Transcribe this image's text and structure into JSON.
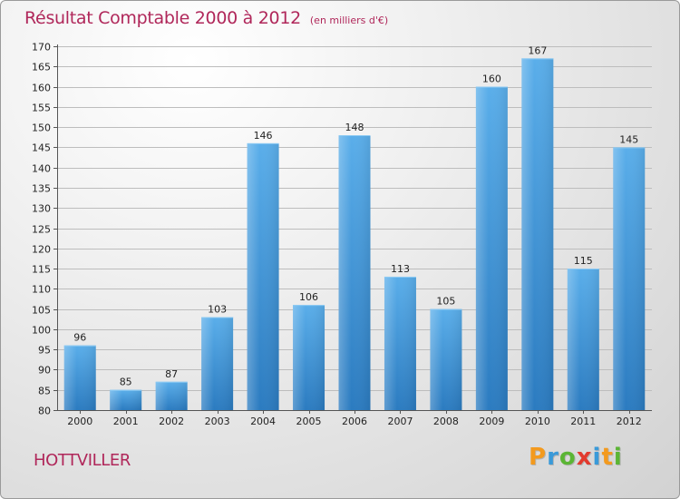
{
  "header": {
    "title": "Résultat Comptable 2000 à 2012",
    "subtitle": "(en milliers d'€)"
  },
  "footer": {
    "city": "HOTTVILLER",
    "logo": [
      {
        "text": "P",
        "color": "#f39a1e"
      },
      {
        "text": "r",
        "color": "#3a9ad9"
      },
      {
        "text": "o",
        "color": "#5bb534"
      },
      {
        "text": "x",
        "color": "#e23a2e"
      },
      {
        "text": "i",
        "color": "#3a9ad9"
      },
      {
        "text": "t",
        "color": "#f39a1e"
      },
      {
        "text": "i",
        "color": "#5bb534"
      }
    ]
  },
  "chart_data": {
    "type": "bar",
    "title": "Résultat Comptable 2000 à 2012",
    "subtitle": "(en milliers d'€)",
    "xlabel": "",
    "ylabel": "",
    "categories": [
      "2000",
      "2001",
      "2002",
      "2003",
      "2004",
      "2005",
      "2006",
      "2007",
      "2008",
      "2009",
      "2010",
      "2011",
      "2012"
    ],
    "values": [
      96,
      85,
      87,
      103,
      146,
      106,
      148,
      113,
      105,
      160,
      167,
      115,
      145
    ],
    "ylim": [
      80,
      170
    ],
    "yticks": [
      80,
      85,
      90,
      95,
      100,
      105,
      110,
      115,
      120,
      125,
      130,
      135,
      140,
      145,
      150,
      155,
      160,
      165,
      170
    ],
    "grid": true,
    "bar_color": "#3d95d6"
  }
}
